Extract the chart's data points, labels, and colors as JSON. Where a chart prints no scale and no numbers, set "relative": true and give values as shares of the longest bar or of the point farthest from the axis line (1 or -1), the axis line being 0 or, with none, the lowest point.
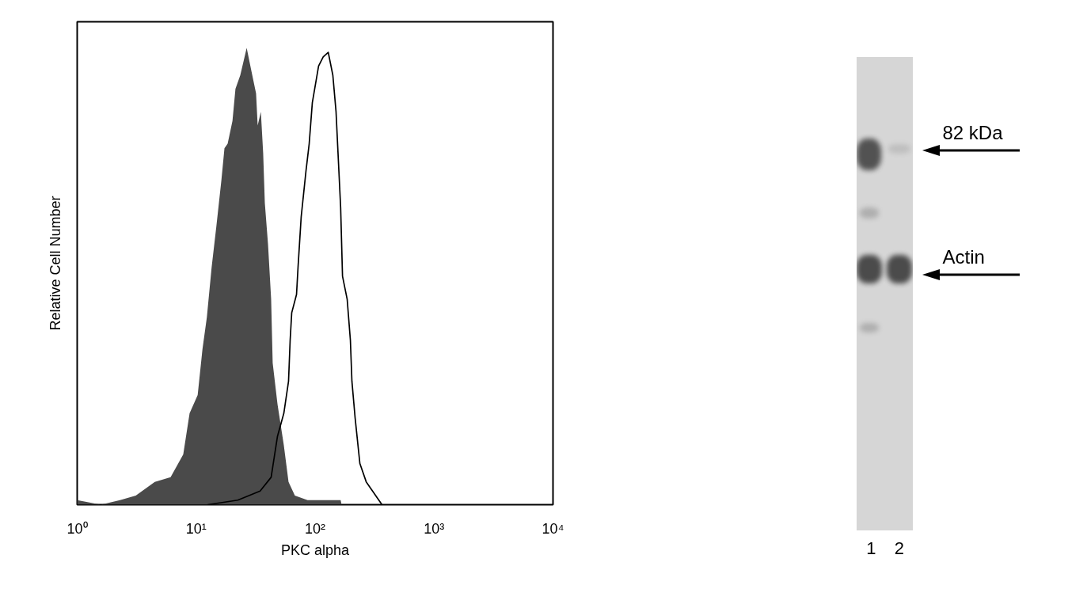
{
  "chart_data": [
    {
      "type": "area",
      "xlabel": "PKC alpha",
      "ylabel": "Relative Cell Number",
      "log": "x",
      "relative": true,
      "xlim": [
        1,
        10000
      ],
      "xticks": [
        {
          "value": 1,
          "label": "10⁰"
        },
        {
          "value": 10,
          "label": "10¹"
        },
        {
          "value": 100,
          "label": "10²"
        },
        {
          "value": 1000,
          "label": "10³"
        },
        {
          "value": 10000,
          "label": "10⁴"
        }
      ],
      "series": [
        {
          "type": "area",
          "color": "#4a4a4a",
          "x": [
            1.0,
            1.58,
            2.29,
            3.11,
            4.49,
            6.1,
            7.79,
            8.81,
            10.3,
            11.3,
            12.3,
            13.5,
            14.8,
            16.3,
            17.3,
            18.4,
            20.2,
            21.4,
            23.5,
            26.6,
            29.1,
            31.9,
            32.9,
            35.0,
            36.6,
            37.8,
            40.2,
            42.7,
            44.0,
            48.3,
            54.6,
            59.8,
            67.6,
            86.5,
            141,
            164,
            167
          ],
          "values": [
            0.01,
            0.0,
            0.01,
            0.02,
            0.05,
            0.06,
            0.11,
            0.2,
            0.24,
            0.34,
            0.41,
            0.52,
            0.61,
            0.71,
            0.78,
            0.79,
            0.84,
            0.91,
            0.94,
            1.0,
            0.95,
            0.9,
            0.83,
            0.86,
            0.77,
            0.66,
            0.57,
            0.45,
            0.31,
            0.22,
            0.13,
            0.05,
            0.02,
            0.01,
            0.01,
            0.01,
            0.0
          ]
        },
        {
          "type": "line",
          "color": "#000000",
          "x": [
            12.5,
            22.4,
            34.5,
            42.7,
            48.3,
            54.6,
            59.8,
            61.7,
            63.6,
            69.8,
            71.9,
            76.4,
            83.8,
            89.2,
            94.8,
            97.7,
            107,
            117,
            129,
            141,
            150,
            164,
            170,
            186,
            198,
            204,
            217,
            238,
            269,
            304,
            365
          ],
          "values": [
            0.0,
            0.01,
            0.03,
            0.06,
            0.15,
            0.2,
            0.27,
            0.36,
            0.42,
            0.46,
            0.52,
            0.63,
            0.73,
            0.79,
            0.88,
            0.9,
            0.96,
            0.98,
            0.99,
            0.94,
            0.86,
            0.65,
            0.5,
            0.45,
            0.36,
            0.27,
            0.19,
            0.09,
            0.05,
            0.03,
            0.0
          ]
        }
      ]
    },
    {
      "type": "other",
      "categories": [
        "1",
        "2"
      ],
      "annotations": [
        "82 kDa",
        "Actin"
      ]
    }
  ]
}
